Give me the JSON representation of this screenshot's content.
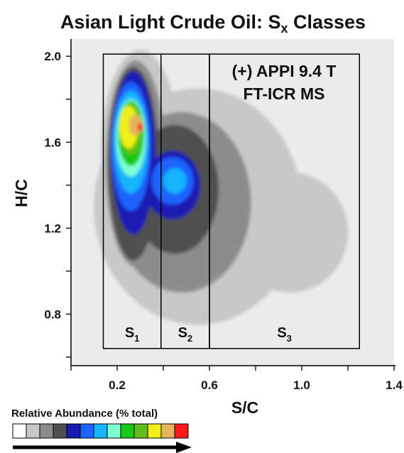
{
  "chart_data": {
    "type": "heatmap",
    "title": {
      "prefix": "Asian Light Crude Oil: S",
      "subscript": "x",
      "suffix": " Classes"
    },
    "xlabel": "S/C",
    "ylabel": "H/C",
    "xlim": [
      0.0,
      1.4
    ],
    "ylim": [
      0.56,
      2.08
    ],
    "xticks": [
      0.2,
      0.6,
      1.0,
      1.4
    ],
    "xtick_labels": [
      "0.2",
      "0.6",
      "1.0",
      "1.4"
    ],
    "yticks": [
      0.8,
      1.2,
      1.6,
      2.0
    ],
    "ytick_labels": [
      "0.8",
      "1.2",
      "1.6",
      "2.0"
    ],
    "annotation": [
      "(+) APPI 9.4 T",
      "FT-ICR MS"
    ],
    "regions": [
      {
        "label": "S",
        "subscript": "1",
        "x_range": [
          0.14,
          0.39
        ]
      },
      {
        "label": "S",
        "subscript": "2",
        "x_range": [
          0.39,
          0.6
        ]
      },
      {
        "label": "S",
        "subscript": "3",
        "x_range": [
          0.6,
          1.25
        ]
      }
    ],
    "region_y_range": [
      0.64,
      2.01
    ],
    "color_scale": {
      "label": "Relative Abundance (% total)",
      "colors": [
        "#ffffff",
        "#c8c8c8",
        "#8c8c8c",
        "#505050",
        "#1a1ab4",
        "#1e64ff",
        "#19b4ff",
        "#7dffd2",
        "#19c819",
        "#64be19",
        "#f0f019",
        "#e6b45a",
        "#ff1919"
      ]
    },
    "background_color": "#ebebeb",
    "contours": [
      {
        "level": 1,
        "cx": 0.55,
        "cy": 1.3,
        "rx": 0.45,
        "ry": 0.55
      },
      {
        "level": 1,
        "cx": 0.95,
        "cy": 1.18,
        "rx": 0.25,
        "ry": 0.28
      },
      {
        "level": 1,
        "cx": 0.3,
        "cy": 1.55,
        "rx": 0.17,
        "ry": 0.48
      },
      {
        "level": 2,
        "cx": 0.48,
        "cy": 1.32,
        "rx": 0.3,
        "ry": 0.42
      },
      {
        "level": 2,
        "cx": 0.28,
        "cy": 1.5,
        "rx": 0.13,
        "ry": 0.48
      },
      {
        "level": 3,
        "cx": 0.45,
        "cy": 1.38,
        "rx": 0.19,
        "ry": 0.3
      },
      {
        "level": 3,
        "cx": 0.27,
        "cy": 1.5,
        "rx": 0.11,
        "ry": 0.45
      },
      {
        "level": 4,
        "cx": 0.27,
        "cy": 1.55,
        "rx": 0.095,
        "ry": 0.38
      },
      {
        "level": 4,
        "cx": 0.44,
        "cy": 1.4,
        "rx": 0.12,
        "ry": 0.16
      },
      {
        "level": 5,
        "cx": 0.26,
        "cy": 1.58,
        "rx": 0.085,
        "ry": 0.3
      },
      {
        "level": 5,
        "cx": 0.44,
        "cy": 1.42,
        "rx": 0.09,
        "ry": 0.11
      },
      {
        "level": 6,
        "cx": 0.26,
        "cy": 1.6,
        "rx": 0.075,
        "ry": 0.24
      },
      {
        "level": 6,
        "cx": 0.45,
        "cy": 1.42,
        "rx": 0.05,
        "ry": 0.06
      },
      {
        "level": 7,
        "cx": 0.26,
        "cy": 1.62,
        "rx": 0.065,
        "ry": 0.18
      },
      {
        "level": 8,
        "cx": 0.26,
        "cy": 1.64,
        "rx": 0.055,
        "ry": 0.15
      },
      {
        "level": 9,
        "cx": 0.26,
        "cy": 1.66,
        "rx": 0.045,
        "ry": 0.12
      },
      {
        "level": 10,
        "cx": 0.25,
        "cy": 1.67,
        "rx": 0.04,
        "ry": 0.1
      },
      {
        "level": 11,
        "cx": 0.28,
        "cy": 1.68,
        "rx": 0.03,
        "ry": 0.05
      },
      {
        "level": 12,
        "cx": 0.3,
        "cy": 1.67,
        "rx": 0.012,
        "ry": 0.02
      }
    ]
  }
}
